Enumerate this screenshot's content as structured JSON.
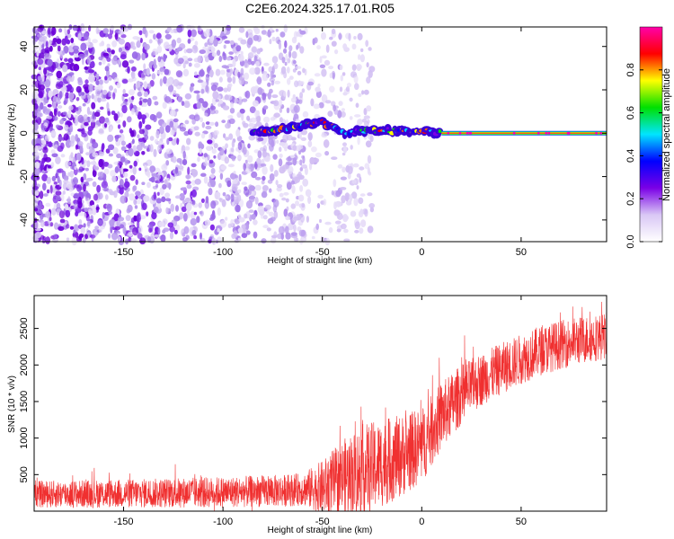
{
  "title": "C2E6.2024.325.17.01.R05",
  "chart_data": [
    {
      "type": "heatmap",
      "xlabel": "Height of straight line (km)",
      "ylabel": "Frequency (Hz)",
      "xlim": [
        -195,
        93
      ],
      "ylim": [
        -50,
        49
      ],
      "x_ticks": [
        -150,
        -100,
        -50,
        0,
        50
      ],
      "y_ticks": [
        -40,
        -20,
        0,
        20,
        40
      ],
      "grid": false,
      "colorbar": {
        "label": "Normalized spectral amplitude",
        "range": [
          0,
          1
        ],
        "ticks": [
          0.0,
          0.2,
          0.4,
          0.6,
          0.8
        ],
        "colormap": [
          "#ffffff",
          "#d9c7f5",
          "#7a00e6",
          "#0000ff",
          "#00e5ff",
          "#00e000",
          "#ffff00",
          "#ff0000",
          "#ff00aa"
        ]
      },
      "features": {
        "noise_region_x": [
          -195,
          -35
        ],
        "signal_track": [
          {
            "x": -85,
            "y": 0
          },
          {
            "x": -70,
            "y": 2
          },
          {
            "x": -60,
            "y": 4
          },
          {
            "x": -50,
            "y": 5
          },
          {
            "x": -40,
            "y": 0
          },
          {
            "x": -30,
            "y": 1
          },
          {
            "x": -10,
            "y": 1
          },
          {
            "x": 0,
            "y": 1
          },
          {
            "x": 10,
            "y": 0
          },
          {
            "x": 93,
            "y": 0
          }
        ],
        "constant_line_x": [
          10,
          93
        ],
        "constant_line_y": 0
      }
    },
    {
      "type": "line",
      "xlabel": "Height of straight line (km)",
      "ylabel": "SNR (10 * v/v)",
      "xlim": [
        -195,
        93
      ],
      "ylim": [
        0,
        2950
      ],
      "x_ticks": [
        -150,
        -100,
        -50,
        0,
        50
      ],
      "y_ticks": [
        500,
        1000,
        1500,
        2000,
        2500
      ],
      "grid": false,
      "series_color": "#f03030",
      "trend": {
        "x": [
          -195,
          -150,
          -100,
          -70,
          -50,
          -40,
          -30,
          -20,
          -10,
          0,
          10,
          20,
          30,
          40,
          50,
          60,
          70,
          80,
          93
        ],
        "y": [
          230,
          240,
          260,
          280,
          320,
          450,
          550,
          650,
          760,
          900,
          1300,
          1600,
          1800,
          1950,
          2080,
          2200,
          2280,
          2340,
          2400
        ]
      },
      "noise_amplitude": {
        "x": [
          -195,
          -60,
          -40,
          -30,
          0,
          30,
          93
        ],
        "y": [
          230,
          280,
          650,
          800,
          650,
          450,
          400
        ]
      }
    }
  ]
}
